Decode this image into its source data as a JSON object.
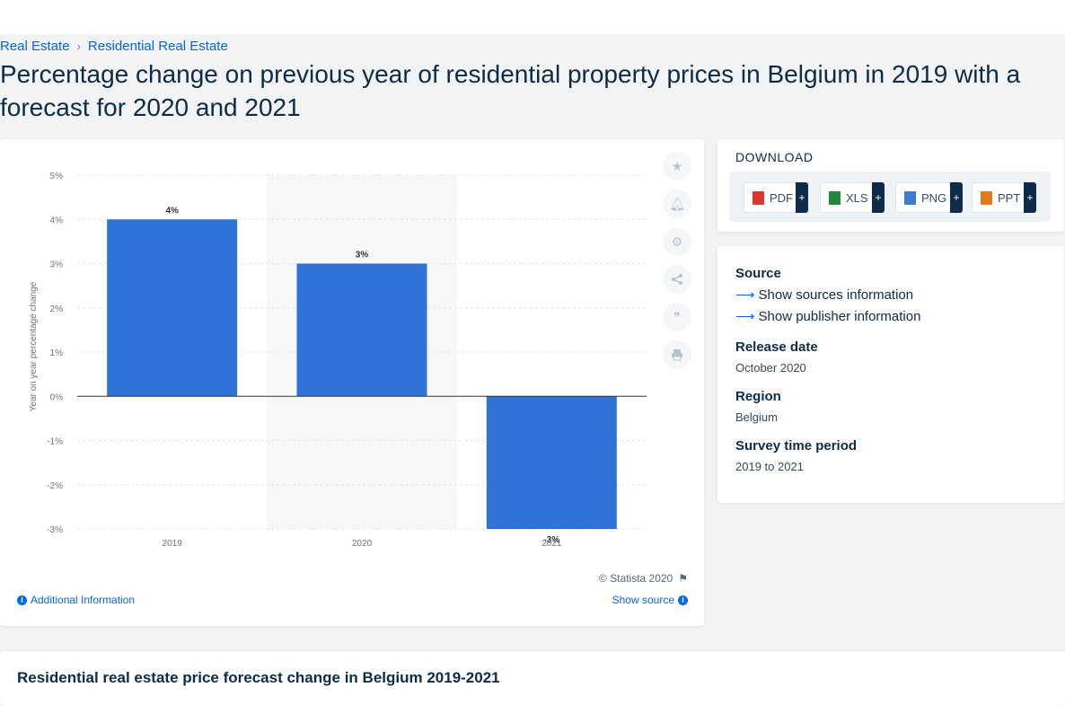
{
  "breadcrumb": {
    "items": [
      "Real Estate",
      "Residential Real Estate"
    ],
    "separator": "›"
  },
  "page_title": "Percentage change on previous year of residential property prices in Belgium in 2019 with a forecast for 2020 and 2021",
  "chart_footer": {
    "copyright": "© Statista 2020",
    "additional_info": "Additional Information",
    "show_source": "Show source"
  },
  "download": {
    "title": "DOWNLOAD",
    "formats": [
      {
        "label": "PDF",
        "color": "#d9382b"
      },
      {
        "label": "XLS",
        "color": "#1f8a3c"
      },
      {
        "label": "PNG",
        "color": "#3a7bd5"
      },
      {
        "label": "PPT",
        "color": "#e2791f"
      }
    ],
    "plus": "+"
  },
  "info": {
    "source_label": "Source",
    "show_sources": "Show sources information",
    "show_publisher": "Show publisher information",
    "release_label": "Release date",
    "release_value": "October 2020",
    "region_label": "Region",
    "region_value": "Belgium",
    "period_label": "Survey time period",
    "period_value": "2019 to 2021"
  },
  "bottom_title": "Residential real estate price forecast change in Belgium 2019-2021",
  "side_tools": [
    "star-icon",
    "bell-icon",
    "gear-icon",
    "share-icon",
    "quote-icon",
    "print-icon"
  ],
  "chart_data": {
    "type": "bar",
    "categories": [
      "2019",
      "2020",
      "2021"
    ],
    "values": [
      4,
      3,
      -3
    ],
    "data_labels": [
      "4%",
      "3%",
      "-3%"
    ],
    "ylabel": "Year on year percentage change",
    "ylim": [
      -3,
      5
    ],
    "yticks": [
      5,
      4,
      3,
      2,
      1,
      0,
      -1,
      -2,
      -3
    ],
    "ytick_labels": [
      "5%",
      "4%",
      "3%",
      "2%",
      "1%",
      "0%",
      "-1%",
      "-2%",
      "-3%"
    ],
    "grid": true,
    "bar_color": "#2f72d8",
    "highlight_band_color": "#f6f7f8"
  }
}
